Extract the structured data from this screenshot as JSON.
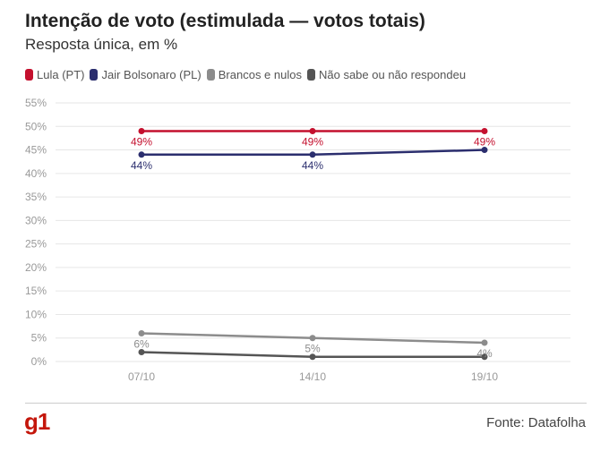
{
  "header": {
    "title": "Intenção de voto (estimulada — votos totais)",
    "subtitle": "Resposta única, em %"
  },
  "footer": {
    "logo": "g1",
    "source": "Fonte: Datafolha"
  },
  "colors": {
    "lula": "#c4102e",
    "bolsonaro": "#2b2e6e",
    "brancos": "#8c8c8c",
    "nao_sabe": "#555555",
    "grid": "#e6e6e6",
    "tick": "#999999"
  },
  "chart_data": {
    "type": "line",
    "title": "Intenção de voto (estimulada — votos totais)",
    "subtitle": "Resposta única, em %",
    "categories": [
      "07/10",
      "14/10",
      "19/10"
    ],
    "ylim": [
      0,
      55
    ],
    "yticks": [
      "0%",
      "5%",
      "10%",
      "15%",
      "20%",
      "25%",
      "30%",
      "35%",
      "40%",
      "45%",
      "50%",
      "55%"
    ],
    "ytick_values": [
      0,
      5,
      10,
      15,
      20,
      25,
      30,
      35,
      40,
      45,
      50,
      55
    ],
    "grid": true,
    "legend_position": "top-left",
    "series": [
      {
        "name": "Lula (PT)",
        "color_key": "lula",
        "values": [
          49,
          49,
          49
        ],
        "labels": [
          "49%",
          "49%",
          "49%"
        ],
        "label_position": "below"
      },
      {
        "name": "Jair Bolsonaro (PL)",
        "color_key": "bolsonaro",
        "values": [
          44,
          44,
          45
        ],
        "labels": [
          "44%",
          "44%",
          null
        ],
        "label_position": "below"
      },
      {
        "name": "Brancos e nulos",
        "color_key": "brancos",
        "values": [
          6,
          5,
          4
        ],
        "labels": [
          "6%",
          "5%",
          "4%"
        ],
        "label_position": "below"
      },
      {
        "name": "Não sabe ou não respondeu",
        "color_key": "nao_sabe",
        "values": [
          2,
          1,
          1
        ],
        "labels": [
          null,
          null,
          null
        ],
        "label_position": "below"
      }
    ]
  }
}
